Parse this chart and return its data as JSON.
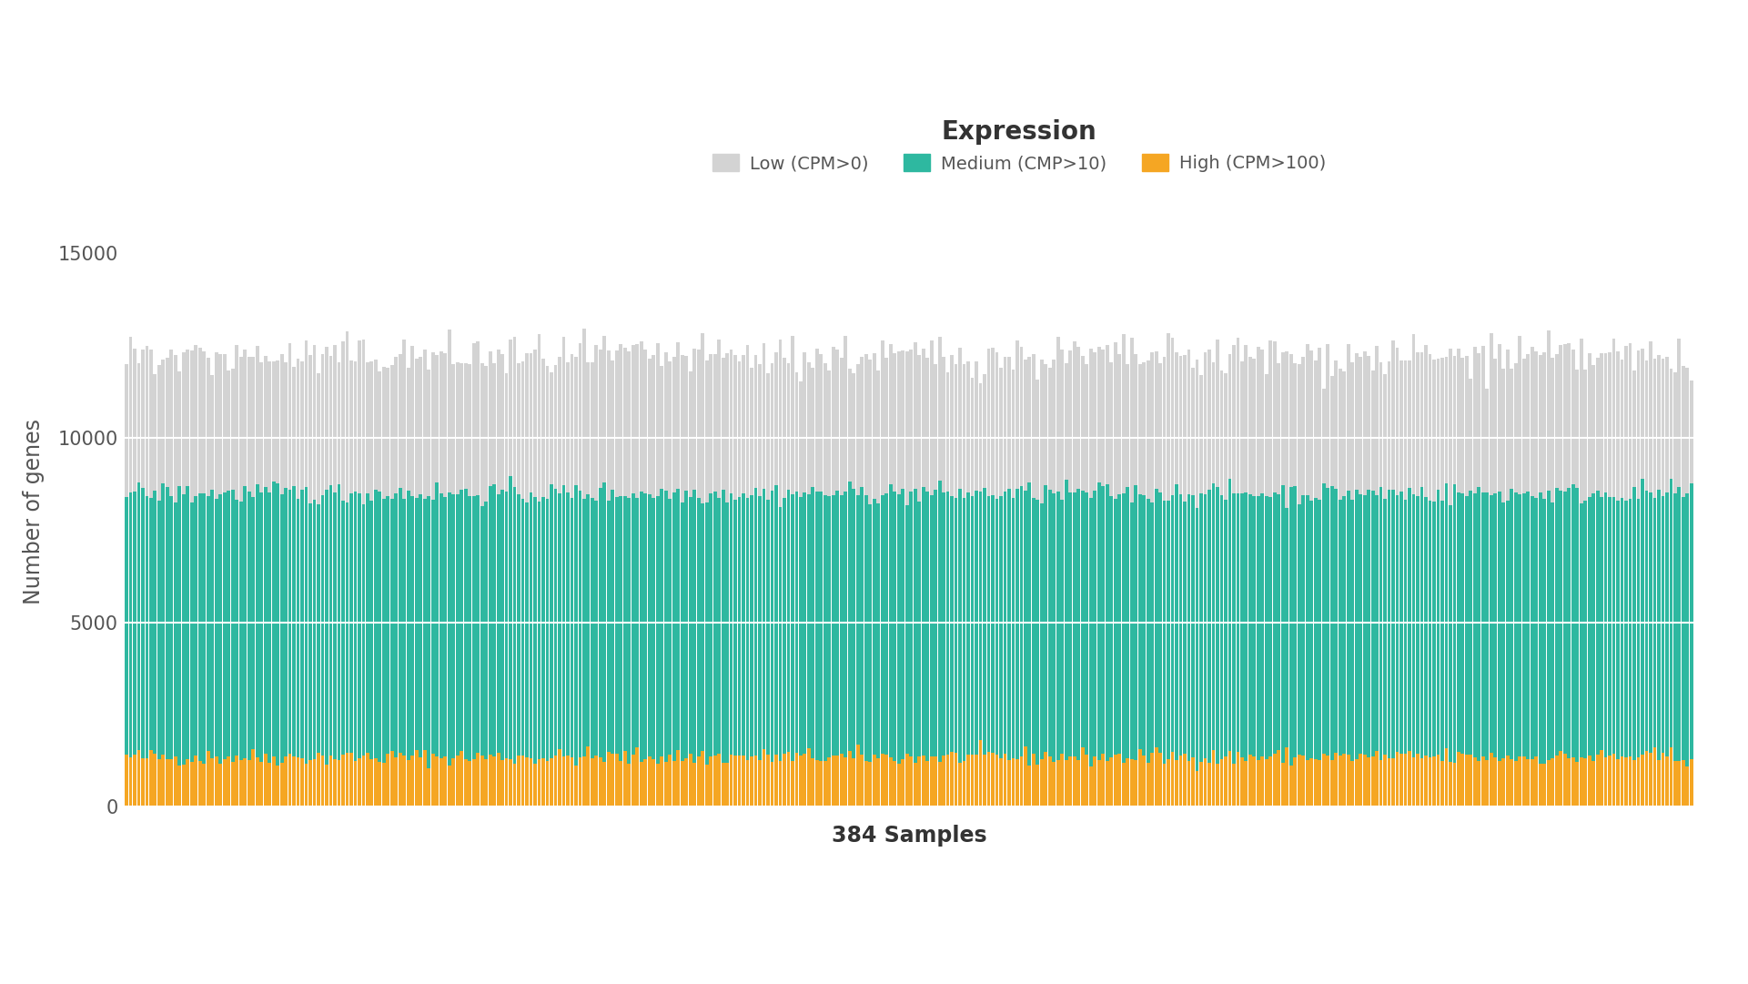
{
  "n_samples": 384,
  "title": "Expression",
  "xlabel": "384 Samples",
  "ylabel": "Number of genes",
  "legend_labels": [
    "Low (CPM>0)",
    "Medium (CMP>10)",
    "High (CPM>100)"
  ],
  "colors": {
    "low": "#d3d3d3",
    "medium": "#2eb8a0",
    "high": "#f5a623"
  },
  "ylim": [
    0,
    16000
  ],
  "yticks": [
    0,
    5000,
    10000,
    15000
  ],
  "low_mean": 12200,
  "low_std": 300,
  "medium_mean": 8500,
  "medium_std": 150,
  "high_mean": 1350,
  "high_std": 120,
  "background_color": "#ffffff",
  "grid_color": "#ffffff",
  "title_fontsize": 20,
  "label_fontsize": 17,
  "tick_fontsize": 15,
  "legend_fontsize": 14
}
